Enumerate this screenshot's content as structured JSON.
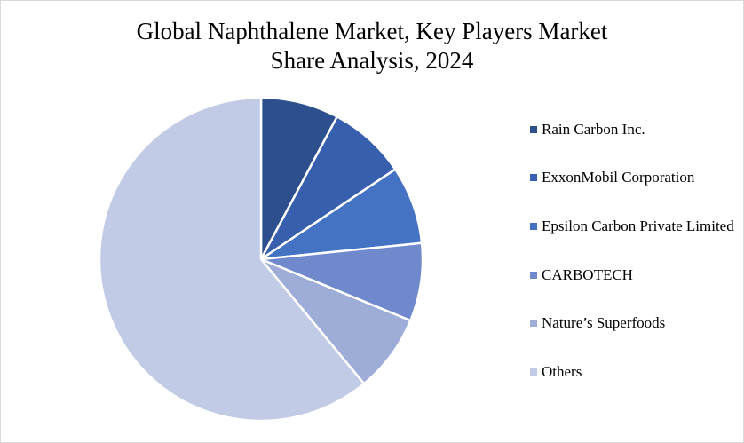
{
  "chart_data": {
    "type": "pie",
    "title_lines": [
      "Global Naphthalene Market, Key Players Market",
      "Share Analysis, 2024"
    ],
    "categories": [
      "Rain Carbon Inc.",
      "ExxonMobil Corporation",
      "Epsilon Carbon Private Limited",
      "CARBOTECH",
      "Nature’s Superfoods",
      "Others"
    ],
    "values": [
      7.8,
      7.8,
      7.8,
      7.8,
      7.8,
      61.0
    ],
    "colors": [
      "#2e4f8e",
      "#375fad",
      "#4473c4",
      "#7089cc",
      "#9eadd8",
      "#c1cbe5"
    ],
    "legend_position": "right"
  }
}
